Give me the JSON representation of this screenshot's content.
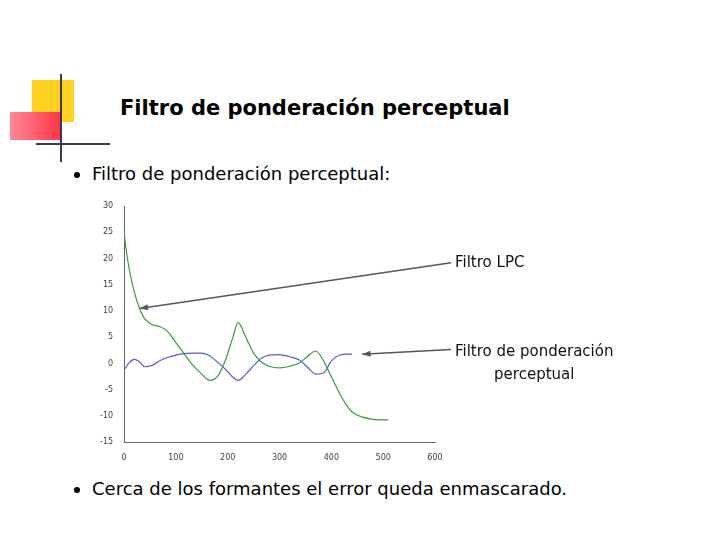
{
  "slide": {
    "title": "Filtro de ponderación perceptual",
    "bullets": [
      "Filtro de ponderación perceptual:",
      "Cerca de los formantes el error queda enmascarado."
    ]
  },
  "chart_data": {
    "type": "line",
    "x": [
      0,
      5,
      10,
      20,
      30,
      40,
      55,
      70,
      85,
      100,
      115,
      130,
      150,
      165,
      180,
      195,
      210,
      220,
      235,
      250,
      265,
      280,
      300,
      320,
      340,
      355,
      370,
      385,
      400,
      415,
      430,
      440,
      460,
      480,
      500,
      510
    ],
    "series": [
      {
        "color": "#3c9c3c",
        "values": [
          25,
          21,
          18,
          13.5,
          10.5,
          8.5,
          7.4,
          7,
          6,
          4,
          2,
          0,
          -2,
          -3.2,
          -2.5,
          0.5,
          5,
          7.8,
          5,
          2,
          0.3,
          -0.5,
          -0.8,
          -0.5,
          0.2,
          1.5,
          2.4,
          0.5,
          -2.5,
          -5.5,
          -8,
          -9.2,
          -10.2,
          -10.6,
          -10.7,
          -10.7
        ]
      },
      {
        "color": "#5a5ad0",
        "values": [
          -1.2,
          -0.5,
          0.2,
          0.8,
          0.3,
          -0.6,
          -0.3,
          0.6,
          1.2,
          1.6,
          1.9,
          2,
          2,
          1.5,
          0.3,
          -1,
          -2.6,
          -3.2,
          -2,
          -0.4,
          1,
          1.6,
          1.7,
          1.3,
          0.6,
          -0.8,
          -2,
          -1.8,
          0.5,
          1.6,
          1.8,
          1.8,
          null,
          null,
          null,
          null
        ]
      }
    ],
    "xlim": [
      0,
      600
    ],
    "xticks": [
      0,
      100,
      200,
      300,
      400,
      500,
      600
    ],
    "ylim": [
      -15,
      30
    ],
    "yticks": [
      -15,
      -10,
      -5,
      0,
      5,
      10,
      15,
      20,
      25,
      30
    ],
    "grid": false,
    "annotations": [
      "Filtro LPC",
      "Filtro de ponderación\nperceptual"
    ]
  }
}
